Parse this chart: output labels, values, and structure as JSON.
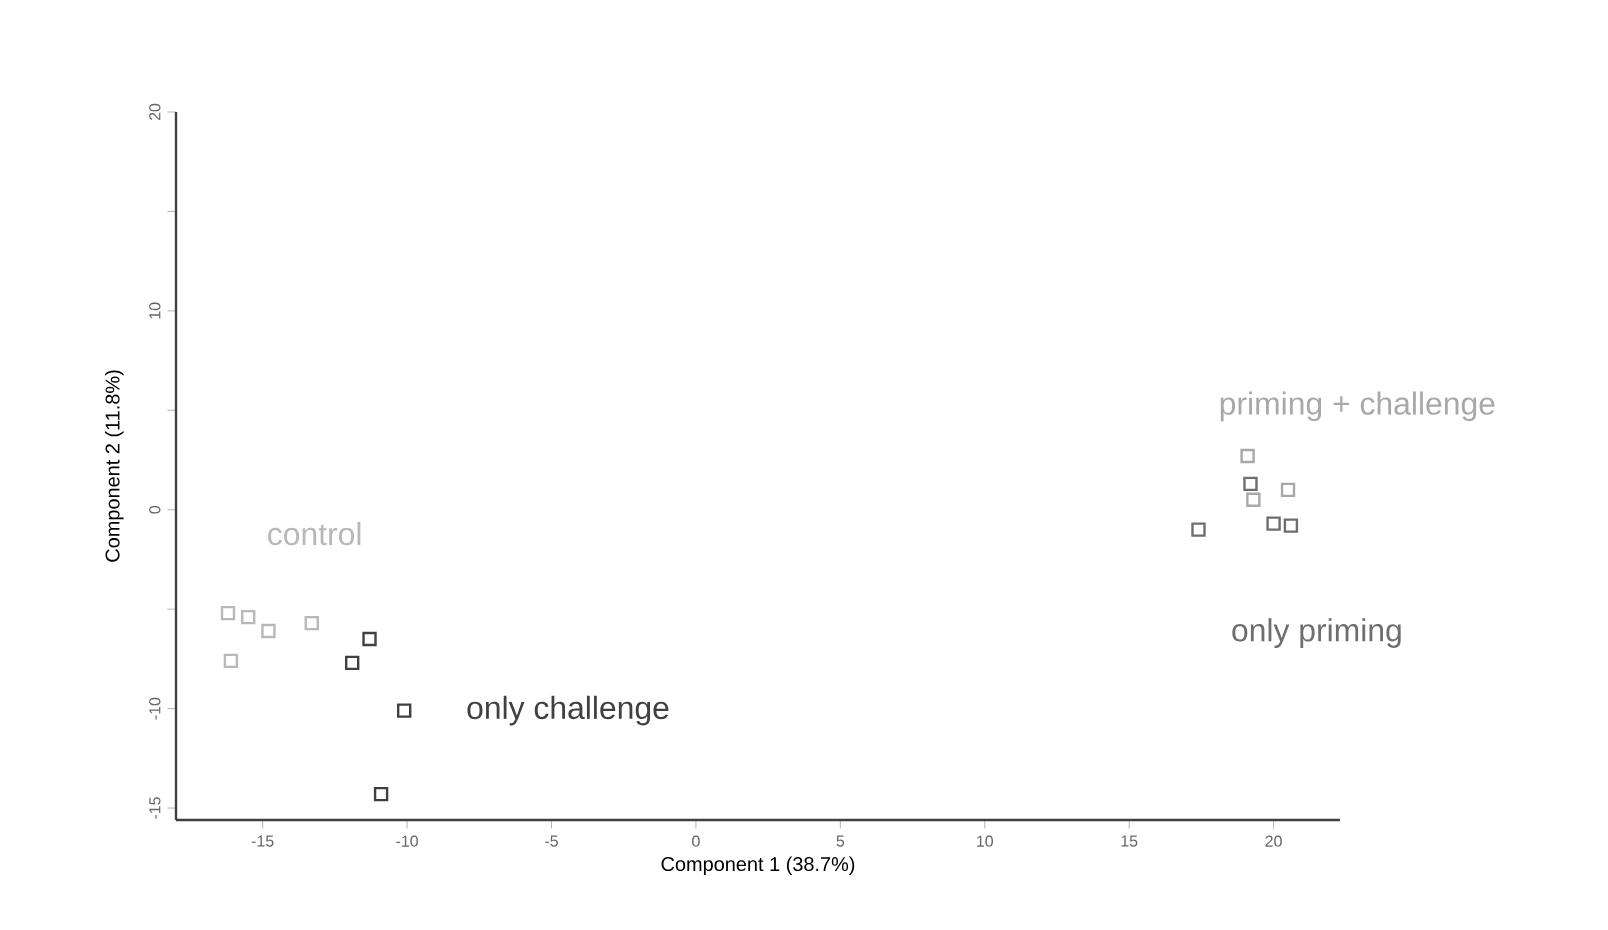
{
  "chart_data": {
    "type": "scatter",
    "xlabel": "Component 1 (38.7%)",
    "ylabel": "Component 2 (11.8%)",
    "xlim": [
      -18,
      22.3
    ],
    "ylim": [
      -15.6,
      20
    ],
    "xticks": [
      -15,
      -10,
      -5,
      0,
      5,
      10,
      15,
      20
    ],
    "yticks": [
      20,
      {
        "value": 15,
        "label": null
      },
      10,
      {
        "value": 5,
        "label": null
      },
      0,
      {
        "value": -5,
        "label": null
      },
      -10,
      -15
    ],
    "marker": "square",
    "series": [
      {
        "name": "control",
        "color": "#b8b8b8",
        "x": [
          -16.2,
          -15.5,
          -14.8,
          -13.3,
          -16.1
        ],
        "values": [
          -5.2,
          -5.4,
          -6.1,
          -5.7,
          -7.6
        ]
      },
      {
        "name": "only challenge",
        "color": "#404040",
        "x": [
          -11.3,
          -11.9,
          -10.1,
          -10.9
        ],
        "values": [
          -6.5,
          -7.7,
          -10.1,
          -14.3
        ]
      },
      {
        "name": "priming + challenge",
        "color": "#a8a8a8",
        "x": [
          19.1,
          20.5,
          19.3
        ],
        "values": [
          2.7,
          1.0,
          0.5
        ]
      },
      {
        "name": "only priming",
        "color": "#6e6e6e",
        "x": [
          19.2,
          20.0,
          20.6,
          17.4
        ],
        "values": [
          1.3,
          -0.7,
          -0.8,
          -1.0
        ]
      }
    ]
  }
}
